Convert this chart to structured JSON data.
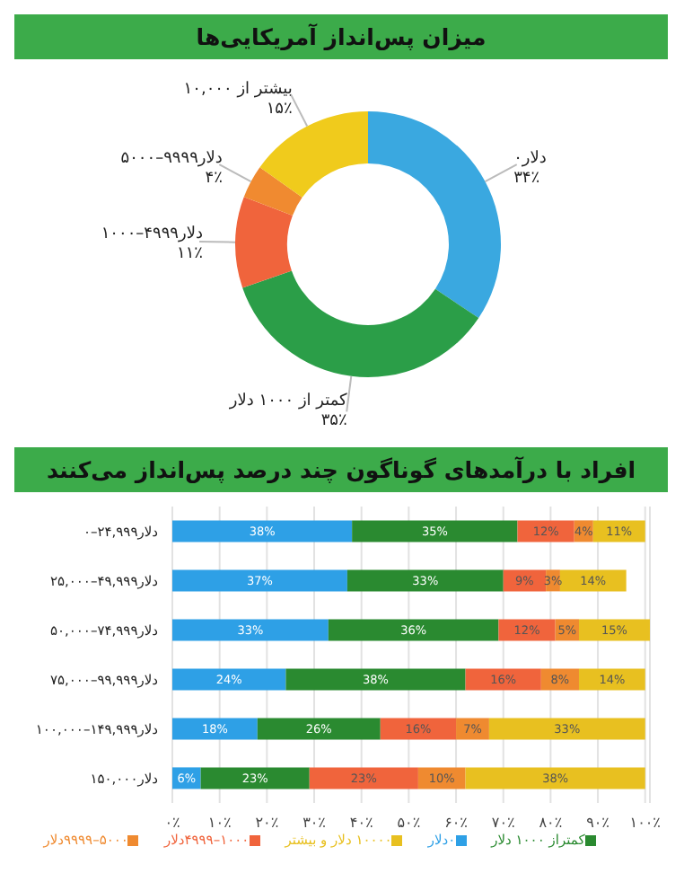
{
  "chart_data": [
    {
      "type": "donut",
      "title": "میزان پس‌انداز آمریکایی‌ها",
      "categories": [
        "۰دلار",
        "کمتر از ۱۰۰۰ دلار",
        "۱۰۰۰–۴۹۹۹دلار",
        "۵۰۰۰–۹۹۹۹دلار",
        "بیشتر از ۱۰,۰۰۰"
      ],
      "values": [
        34,
        35,
        11,
        4,
        15
      ],
      "value_labels": [
        "۳۴٪",
        "۳۵٪",
        "۱۱٪",
        "۴٪",
        "۱۵٪"
      ],
      "colors": [
        "#3aa8e0",
        "#2b9e48",
        "#f0643c",
        "#f08a30",
        "#f0cb1c"
      ]
    },
    {
      "type": "bar",
      "title": "افراد با درآمدهای گوناگون چند درصد پس‌انداز می‌کنند",
      "orientation": "horizontal",
      "stacked": true,
      "categories": [
        "۰–۲۴,۹۹۹دلار",
        "۲۵,۰۰۰–۴۹,۹۹۹دلار",
        "۵۰,۰۰۰–۷۴,۹۹۹دلار",
        "۷۵,۰۰۰–۹۹,۹۹۹دلار",
        "۱۰۰,۰۰۰–۱۴۹,۹۹۹دلار",
        "۱۵۰,۰۰۰دلار"
      ],
      "series": [
        {
          "name": "۰دلار",
          "color": "#2ea0e6",
          "values": [
            38,
            37,
            33,
            24,
            18,
            6
          ],
          "value_labels": [
            "38%",
            "37%",
            "33%",
            "24%",
            "18%",
            "6%"
          ]
        },
        {
          "name": "کمتراز ۱۰۰۰ دلار",
          "color": "#2a8a30",
          "values": [
            35,
            33,
            36,
            38,
            26,
            23
          ],
          "value_labels": [
            "35%",
            "33%",
            "36%",
            "38%",
            "26%",
            "23%"
          ]
        },
        {
          "name": "۱۰۰۰–۴۹۹۹دلار",
          "color": "#f0643c",
          "values": [
            12,
            9,
            12,
            16,
            16,
            23
          ],
          "value_labels": [
            "12%",
            "9%",
            "12%",
            "16%",
            "16%",
            "23%"
          ]
        },
        {
          "name": "۵۰۰۰–۹۹۹۹دلار",
          "color": "#ef8a30",
          "values": [
            4,
            3,
            5,
            8,
            7,
            10
          ],
          "value_labels": [
            "4%",
            "3%",
            "5%",
            "8%",
            "7%",
            "10%"
          ]
        },
        {
          "name": "۱۰۰۰۰ دلار و بیشتر",
          "color": "#e8c020",
          "values": [
            11,
            14,
            15,
            14,
            33,
            38
          ],
          "value_labels": [
            "11%",
            "14%",
            "15%",
            "14%",
            "33%",
            "38%"
          ]
        }
      ],
      "xlim": [
        0,
        101
      ],
      "xticks": [
        {
          "value": 0,
          "label": "۰٪"
        },
        {
          "value": 10,
          "label": "۱۰٪"
        },
        {
          "value": 20,
          "label": "۲۰٪"
        },
        {
          "value": 30,
          "label": "۳۰٪"
        },
        {
          "value": 40,
          "label": "۴۰٪"
        },
        {
          "value": 50,
          "label": "۵۰٪"
        },
        {
          "value": 60,
          "label": "۶۰٪"
        },
        {
          "value": 70,
          "label": "۷۰٪"
        },
        {
          "value": 80,
          "label": "۸۰٪"
        },
        {
          "value": 90,
          "label": "۹۰٪"
        },
        {
          "value": 100,
          "label": "۱۰۰٪"
        }
      ],
      "grid": "x",
      "legend": "bottom"
    }
  ]
}
